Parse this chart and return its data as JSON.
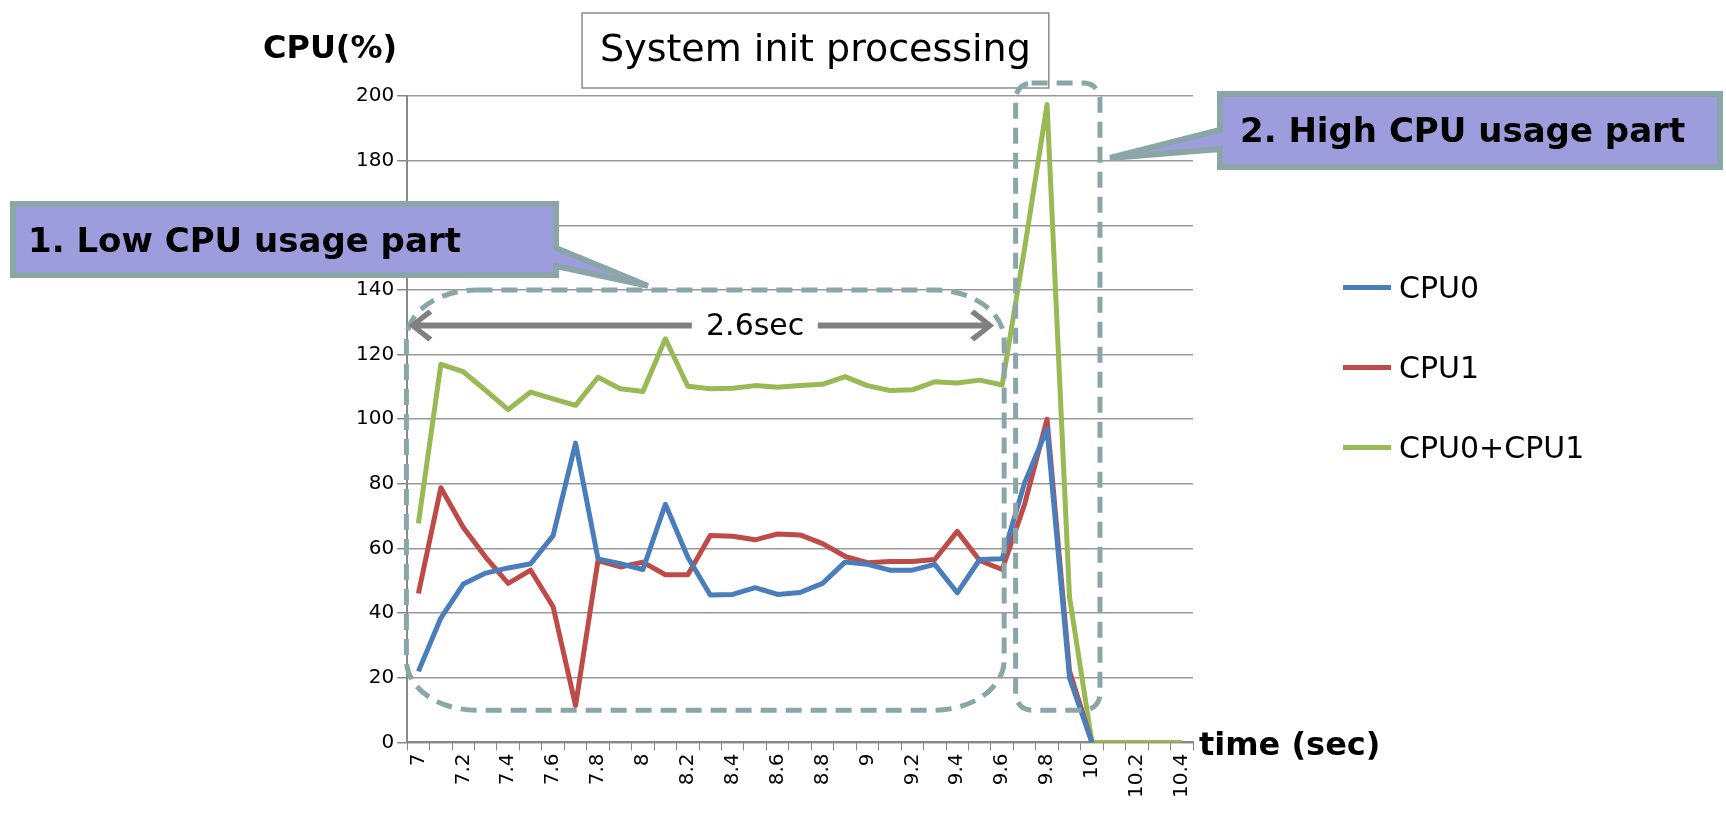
{
  "chart_data": {
    "type": "line",
    "title": "System init processing",
    "ylabel": "CPU(%)",
    "xlabel": "time (sec)",
    "categories": [
      "7",
      null,
      "7.2",
      null,
      "7.4",
      null,
      "7.6",
      null,
      "7.8",
      null,
      "8",
      null,
      "8.2",
      null,
      "8.4",
      null,
      "8.6",
      null,
      "8.8",
      null,
      "9",
      null,
      "9.2",
      null,
      "9.4",
      null,
      "9.6",
      null,
      "9.8",
      null,
      "10",
      null,
      "10.2",
      null,
      "10.4"
    ],
    "series": [
      {
        "name": "CPU0",
        "color": "#4a7ebb",
        "values": [
          22,
          38.5,
          49,
          52.4,
          54,
          55.3,
          64,
          92.6,
          56.8,
          55.3,
          53.5,
          73.7,
          57.3,
          45.6,
          45.8,
          47.9,
          45.8,
          46.4,
          49.2,
          55.8,
          55.1,
          53.3,
          53.3,
          55.1,
          46.3,
          56.6,
          56.8,
          80.3,
          97,
          20,
          0,
          null,
          null,
          null,
          null
        ]
      },
      {
        "name": "CPU1",
        "color": "#be4b48",
        "values": [
          46.1,
          78.8,
          66.5,
          57.3,
          49.2,
          53.3,
          42,
          11.4,
          56.3,
          54.3,
          55.8,
          51.9,
          51.9,
          64,
          63.8,
          62.7,
          64.5,
          64.2,
          61.5,
          57.6,
          55.6,
          56,
          56,
          56.6,
          65.3,
          56.3,
          53.5,
          73.7,
          100,
          22.1,
          0,
          null,
          null,
          null,
          null
        ]
      },
      {
        "name": "CPU0+CPU1",
        "color": "#98b954",
        "values": [
          67.8,
          117,
          114.7,
          108.9,
          103,
          108.4,
          106.3,
          104.3,
          113,
          109.4,
          108.6,
          124.9,
          110.2,
          109.4,
          109.6,
          110.4,
          109.9,
          110.4,
          110.8,
          113.2,
          110.4,
          108.9,
          109.1,
          111.6,
          111.2,
          112.1,
          110.6,
          152.9,
          197.4,
          45,
          0,
          0,
          0,
          0,
          0
        ]
      }
    ],
    "ylim": [
      0,
      200
    ],
    "yticks": [
      0,
      20,
      40,
      60,
      80,
      100,
      120,
      140,
      {
        "value": 160,
        "label": null
      },
      180,
      200
    ],
    "grid": "y",
    "legend": "right",
    "marker": "none",
    "line_style": "solid",
    "annotations": [
      "1. Low CPU usage part",
      "2. High CPU usage part",
      "2.6sec"
    ]
  }
}
